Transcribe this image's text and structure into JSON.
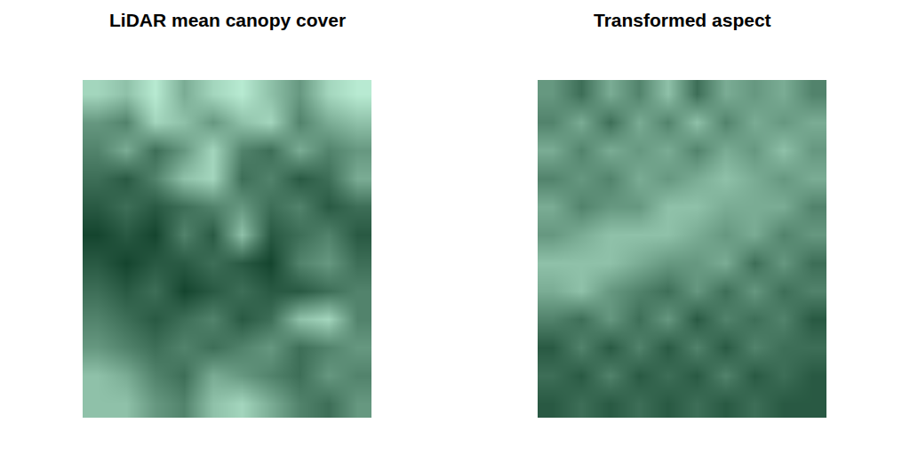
{
  "chart_data": [
    {
      "type": "heatmap",
      "title": "LiDAR mean canopy cover",
      "tick_labels": false,
      "colors": [
        "#ccffe6",
        "#00301a"
      ],
      "zlim": [
        0,
        1
      ],
      "cells": [
        [
          0.2,
          0.3,
          0.1,
          0.4,
          0.2,
          0.1,
          0.3,
          0.5,
          0.2,
          0.1
        ],
        [
          0.5,
          0.6,
          0.2,
          0.3,
          0.5,
          0.3,
          0.2,
          0.6,
          0.4,
          0.3
        ],
        [
          0.6,
          0.4,
          0.7,
          0.5,
          0.2,
          0.6,
          0.7,
          0.4,
          0.6,
          0.5
        ],
        [
          0.7,
          0.8,
          0.6,
          0.3,
          0.2,
          0.7,
          0.6,
          0.8,
          0.7,
          0.4
        ],
        [
          0.8,
          0.7,
          0.8,
          0.7,
          0.6,
          0.5,
          0.7,
          0.6,
          0.8,
          0.7
        ],
        [
          0.9,
          0.8,
          0.9,
          0.6,
          0.8,
          0.3,
          0.8,
          0.7,
          0.6,
          0.8
        ],
        [
          0.8,
          0.9,
          0.8,
          0.8,
          0.7,
          0.8,
          0.9,
          0.6,
          0.5,
          0.7
        ],
        [
          0.7,
          0.8,
          0.7,
          0.9,
          0.8,
          0.7,
          0.8,
          0.8,
          0.7,
          0.6
        ],
        [
          0.6,
          0.7,
          0.8,
          0.7,
          0.6,
          0.8,
          0.7,
          0.3,
          0.2,
          0.6
        ],
        [
          0.5,
          0.6,
          0.7,
          0.6,
          0.7,
          0.6,
          0.5,
          0.7,
          0.6,
          0.5
        ],
        [
          0.3,
          0.4,
          0.6,
          0.7,
          0.4,
          0.5,
          0.6,
          0.7,
          0.5,
          0.6
        ],
        [
          0.3,
          0.3,
          0.5,
          0.6,
          0.3,
          0.2,
          0.4,
          0.6,
          0.7,
          0.5
        ]
      ]
    },
    {
      "type": "heatmap",
      "title": "Transformed aspect",
      "tick_labels": false,
      "colors": [
        "#00301a",
        "#ccffe6"
      ],
      "zlim": [
        0,
        1
      ],
      "cells": [
        [
          0.5,
          0.3,
          0.6,
          0.4,
          0.7,
          0.3,
          0.6,
          0.5,
          0.6,
          0.4
        ],
        [
          0.4,
          0.6,
          0.3,
          0.6,
          0.4,
          0.7,
          0.4,
          0.6,
          0.5,
          0.6
        ],
        [
          0.6,
          0.4,
          0.6,
          0.5,
          0.6,
          0.4,
          0.6,
          0.5,
          0.7,
          0.5
        ],
        [
          0.4,
          0.5,
          0.4,
          0.6,
          0.5,
          0.6,
          0.7,
          0.6,
          0.5,
          0.6
        ],
        [
          0.6,
          0.4,
          0.5,
          0.5,
          0.7,
          0.7,
          0.6,
          0.6,
          0.6,
          0.4
        ],
        [
          0.5,
          0.6,
          0.7,
          0.7,
          0.7,
          0.6,
          0.5,
          0.6,
          0.4,
          0.5
        ],
        [
          0.7,
          0.7,
          0.7,
          0.6,
          0.5,
          0.5,
          0.6,
          0.3,
          0.5,
          0.3
        ],
        [
          0.6,
          0.7,
          0.5,
          0.4,
          0.3,
          0.5,
          0.3,
          0.5,
          0.3,
          0.4
        ],
        [
          0.4,
          0.3,
          0.5,
          0.3,
          0.5,
          0.2,
          0.4,
          0.3,
          0.4,
          0.2
        ],
        [
          0.2,
          0.4,
          0.2,
          0.4,
          0.2,
          0.4,
          0.2,
          0.4,
          0.3,
          0.3
        ],
        [
          0.3,
          0.2,
          0.4,
          0.2,
          0.3,
          0.2,
          0.4,
          0.2,
          0.3,
          0.2
        ],
        [
          0.2,
          0.3,
          0.2,
          0.3,
          0.2,
          0.3,
          0.2,
          0.3,
          0.2,
          0.2
        ]
      ]
    }
  ]
}
